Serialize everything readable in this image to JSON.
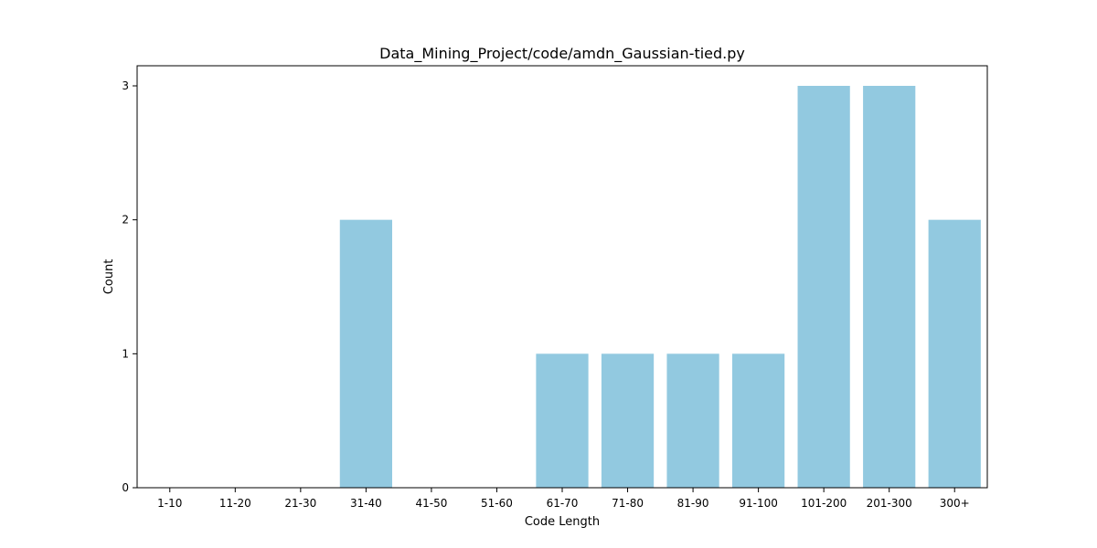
{
  "chart_data": {
    "type": "bar",
    "title": "Data_Mining_Project/code/amdn_Gaussian-tied.py",
    "xlabel": "Code Length",
    "ylabel": "Count",
    "categories": [
      "1-10",
      "11-20",
      "21-30",
      "31-40",
      "41-50",
      "51-60",
      "61-70",
      "71-80",
      "81-90",
      "91-100",
      "101-200",
      "201-300",
      "300+"
    ],
    "values": [
      0,
      0,
      0,
      2,
      0,
      0,
      1,
      1,
      1,
      1,
      3,
      3,
      2
    ],
    "ylim": [
      0,
      3.15
    ],
    "yticks": [
      0,
      1,
      2,
      3
    ],
    "bar_color": "#92c9e0",
    "grid": false,
    "legend": "none"
  }
}
